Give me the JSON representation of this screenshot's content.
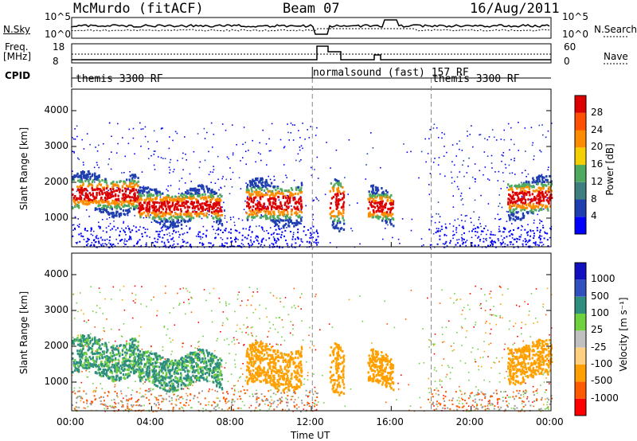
{
  "header": {
    "station": "McMurdo (fitACF)",
    "beam": "Beam 07",
    "date": "16/Aug/2011"
  },
  "top_panel": {
    "nsky_label": "N.Sky",
    "nsky_ticks": [
      "10^5",
      "10^0"
    ],
    "nsearch_label": "N.Search",
    "nsearch_ticks": [
      "10^5",
      "10^0"
    ],
    "freq_label_line1": "Freq.",
    "freq_label_line2": "[MHz]",
    "freq_ticks": [
      "18",
      "8"
    ],
    "nave_label": "Nave",
    "nave_ticks": [
      "60",
      "0"
    ],
    "cpid_label": "CPID",
    "cpid_modes": [
      "themis 3300 RF",
      "normalsound (fast) 157 RF",
      "themis 3300 RF"
    ]
  },
  "chart_data": [
    {
      "type": "heatmap",
      "parameter": "Power",
      "ylabel": "Slant Range [km]",
      "ylim": [
        200,
        4600
      ],
      "yticks": [
        "1000",
        "2000",
        "3000",
        "4000"
      ],
      "colorbar": {
        "label": "Power [dB]",
        "ticks": [
          "4",
          "8",
          "12",
          "16",
          "20",
          "24",
          "28"
        ],
        "colors": [
          "#0000ff",
          "#1f3fb0",
          "#3f7f7f",
          "#4faa5f",
          "#f5d000",
          "#ff8c00",
          "#ff4f00",
          "#dd0000"
        ]
      },
      "echo_regions_hours": [
        {
          "start": 0.0,
          "end": 3.3,
          "range": [
            1200,
            2200
          ]
        },
        {
          "start": 3.3,
          "end": 7.5,
          "range": [
            900,
            1800
          ]
        },
        {
          "start": 8.7,
          "end": 11.5,
          "range": [
            900,
            2000
          ]
        },
        {
          "start": 12.9,
          "end": 13.6,
          "range": [
            800,
            2200
          ]
        },
        {
          "start": 14.8,
          "end": 16.1,
          "range": [
            900,
            1800
          ]
        },
        {
          "start": 21.8,
          "end": 24.0,
          "range": [
            1100,
            2100
          ]
        }
      ]
    },
    {
      "type": "heatmap",
      "parameter": "Velocity",
      "ylabel": "Slant Range [km]",
      "ylim": [
        200,
        4600
      ],
      "yticks": [
        "1000",
        "2000",
        "3000",
        "4000"
      ],
      "xlabel": "Time UT",
      "xticks": [
        "00:00",
        "04:00",
        "08:00",
        "12:00",
        "16:00",
        "20:00",
        "00:00"
      ],
      "colorbar": {
        "label": "Velocity [m s⁻¹]",
        "ticks": [
          "1000",
          "500",
          "100",
          "25",
          "-25",
          "-100",
          "-500",
          "-1000"
        ],
        "colors": [
          "#1010c0",
          "#3050c0",
          "#2f8f7f",
          "#6fd040",
          "#c0c0c0",
          "#ffd080",
          "#ffa000",
          "#ff5a00",
          "#ff0000"
        ]
      }
    }
  ]
}
